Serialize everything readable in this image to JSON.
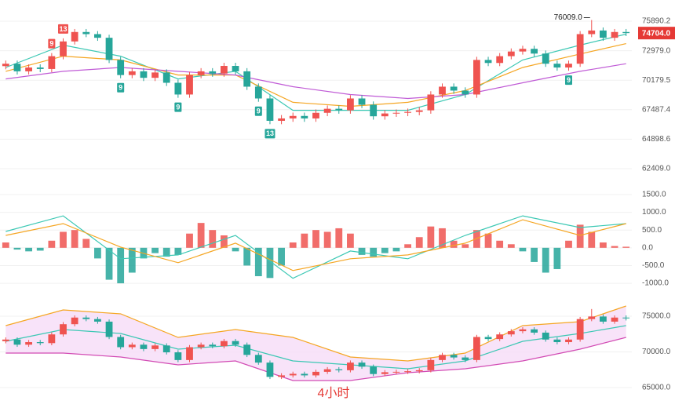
{
  "chart_data": [
    {
      "type": "candlestick",
      "open": [
        71500,
        71730,
        71010,
        71370,
        71230,
        72450,
        73880,
        74810,
        74600,
        74240,
        72090,
        70660,
        71010,
        70400,
        70900,
        69940,
        68860,
        70660,
        71010,
        70800,
        71520,
        71010,
        69580,
        68500,
        66500,
        66710,
        66930,
        66710,
        67210,
        67570,
        67430,
        68500,
        67930,
        66900,
        67150,
        67210,
        67290,
        67430,
        68860,
        69580,
        69220,
        68860,
        72090,
        71800,
        72450,
        72900,
        73160,
        72700,
        71730,
        71370,
        71730,
        74600,
        74960,
        74240,
        74810
      ],
      "high": [
        72030,
        72030,
        71670,
        71670,
        72750,
        74180,
        75110,
        75110,
        74900,
        74540,
        72390,
        71310,
        71310,
        71200,
        71200,
        70240,
        70960,
        71310,
        71310,
        71820,
        71820,
        71310,
        69880,
        68800,
        67010,
        67230,
        67230,
        67510,
        67870,
        67870,
        68800,
        68800,
        68230,
        67450,
        67510,
        67590,
        67730,
        69160,
        69880,
        69880,
        69520,
        72390,
        72390,
        72750,
        73200,
        73460,
        73460,
        73000,
        72030,
        72030,
        74900,
        76009,
        75260,
        75110,
        75110
      ],
      "low": [
        71200,
        70710,
        70710,
        70930,
        70930,
        72150,
        73580,
        74300,
        73940,
        71790,
        70360,
        70360,
        70100,
        70100,
        69640,
        68560,
        68560,
        70360,
        70500,
        70500,
        70710,
        69280,
        68200,
        66200,
        66200,
        66410,
        66410,
        66410,
        66910,
        67130,
        67130,
        67630,
        66600,
        66600,
        66850,
        66910,
        66990,
        67130,
        68560,
        68920,
        68560,
        68560,
        71500,
        71500,
        72150,
        72600,
        72400,
        71430,
        71070,
        71070,
        71430,
        74300,
        73940,
        73940,
        74404
      ],
      "close": [
        71730,
        71010,
        71370,
        71230,
        72450,
        73880,
        74810,
        74600,
        74240,
        72090,
        70660,
        71010,
        70400,
        70900,
        69940,
        68860,
        70660,
        71010,
        70800,
        71520,
        71010,
        69580,
        68500,
        66500,
        66710,
        66930,
        66710,
        67210,
        67570,
        67430,
        68500,
        67930,
        66900,
        67150,
        67210,
        67290,
        67430,
        68860,
        69580,
        69220,
        68860,
        72090,
        71800,
        72450,
        72900,
        73160,
        72700,
        71730,
        71370,
        71730,
        74600,
        74960,
        74240,
        74810,
        74704
      ],
      "up_color": "#ef5350",
      "down_color": "#26a69a",
      "log_scale": true,
      "ylim": [
        61443,
        78053
      ],
      "yticks": [
        {
          "value": 62409,
          "label": "62409.0"
        },
        {
          "value": 64898.6,
          "label": "64898.6"
        },
        {
          "value": 67487.4,
          "label": "67487.4"
        },
        {
          "value": 70179.5,
          "label": "70179.5"
        },
        {
          "value": 72979,
          "label": "72979.0"
        },
        {
          "value": 75890.2,
          "label": "75890.2"
        }
      ],
      "grid": true,
      "line_x": [
        0,
        5,
        10,
        15,
        20,
        25,
        30,
        35,
        40,
        45,
        50,
        54
      ],
      "lines": [
        {
          "color": "#3cc8b4",
          "values": [
            71370,
            73520,
            72450,
            70300,
            71010,
            67430,
            67430,
            67430,
            68860,
            72090,
            73520,
            74600
          ]
        },
        {
          "color": "#f5a623",
          "values": [
            71010,
            72450,
            72090,
            70660,
            70660,
            68150,
            67790,
            68150,
            69220,
            71370,
            72660,
            73670
          ]
        },
        {
          "color": "#c05bd6",
          "values": [
            70300,
            71010,
            71370,
            71010,
            70660,
            69580,
            68860,
            68500,
            68860,
            69940,
            71010,
            71730
          ]
        }
      ],
      "last_price": {
        "value": 74704,
        "label": "74704.0",
        "color": "#e53935"
      },
      "high_annotation": {
        "value": 76009,
        "label": "76009.0"
      },
      "td_sequential": [
        {
          "x": 4,
          "count": 9,
          "side": "up"
        },
        {
          "x": 5,
          "count": 13,
          "side": "up"
        },
        {
          "x": 10,
          "count": 9,
          "side": "down"
        },
        {
          "x": 15,
          "count": 9,
          "side": "down"
        },
        {
          "x": 22,
          "count": 9,
          "side": "down"
        },
        {
          "x": 23,
          "count": 13,
          "side": "down"
        },
        {
          "x": 49,
          "count": 9,
          "side": "down"
        }
      ]
    },
    {
      "type": "macd",
      "histogram": [
        150,
        -50,
        -100,
        -80,
        200,
        450,
        500,
        250,
        -300,
        -900,
        -1000,
        -700,
        -300,
        -150,
        -250,
        -200,
        400,
        700,
        500,
        350,
        -100,
        -500,
        -800,
        -850,
        -500,
        150,
        400,
        500,
        450,
        550,
        400,
        -200,
        -250,
        -150,
        -100,
        100,
        300,
        600,
        550,
        200,
        100,
        500,
        400,
        200,
        100,
        -100,
        -400,
        -700,
        -600,
        200,
        650,
        450,
        150,
        50,
        30
      ],
      "up_color": "#ef5350",
      "down_color": "#26a69a",
      "ylim": [
        -1308,
        1786
      ],
      "yticks": [
        {
          "value": 1500,
          "label": "1500.0"
        },
        {
          "value": 1000,
          "label": "1000.0"
        },
        {
          "value": 500,
          "label": "500.0"
        },
        {
          "value": 0,
          "label": "0.0"
        },
        {
          "value": -500,
          "label": "-500.0"
        },
        {
          "value": -1000,
          "label": "-1000.0"
        }
      ],
      "grid": true,
      "line_x": [
        0,
        5,
        10,
        15,
        20,
        25,
        30,
        35,
        40,
        45,
        50,
        54
      ],
      "lines": [
        {
          "color": "#3cc8b4",
          "values": [
            460,
            900,
            -310,
            -200,
            350,
            -860,
            -90,
            -310,
            350,
            900,
            570,
            680
          ]
        },
        {
          "color": "#f5a623",
          "values": [
            350,
            680,
            20,
            -420,
            130,
            -640,
            -310,
            -200,
            130,
            790,
            350,
            680
          ]
        }
      ]
    },
    {
      "type": "bollinger",
      "ylim": [
        62140,
        76980
      ],
      "yticks": [
        {
          "value": 75000,
          "label": "75000.0"
        },
        {
          "value": 70000,
          "label": "70000.0"
        },
        {
          "value": 65000,
          "label": "65000.0"
        }
      ],
      "grid": true,
      "band_fill": "#f6dcf7",
      "line_x": [
        0,
        5,
        10,
        15,
        20,
        25,
        30,
        35,
        40,
        45,
        50,
        54
      ],
      "lines": [
        {
          "color": "#f5a623",
          "values": [
            73680,
            75880,
            75330,
            72030,
            73130,
            72030,
            69290,
            68740,
            69840,
            73680,
            74230,
            76430
          ]
        },
        {
          "color": "#3cc8b4",
          "values": [
            71480,
            73130,
            72580,
            70380,
            70930,
            68740,
            68190,
            67640,
            68740,
            71480,
            72580,
            73680
          ]
        },
        {
          "color": "#d24bb4",
          "values": [
            69840,
            69840,
            69290,
            68190,
            68740,
            65990,
            65990,
            67090,
            67640,
            68740,
            70380,
            72030
          ]
        }
      ],
      "annotation": "4小时",
      "annotation_color": "#e53935"
    }
  ]
}
